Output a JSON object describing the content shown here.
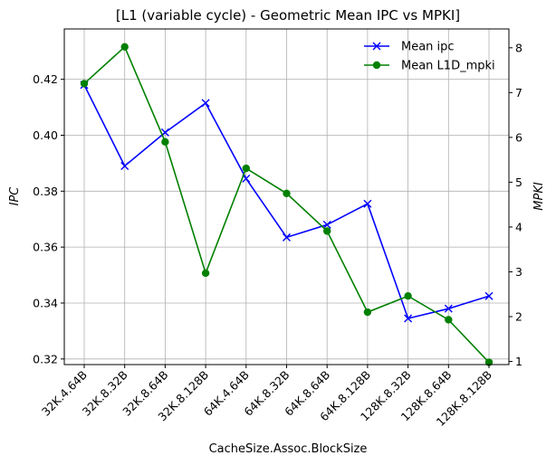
{
  "chart_data": {
    "type": "line",
    "title": "[L1 (variable cycle) - Geometric Mean IPC vs MPKI]",
    "xlabel": "CacheSize.Assoc.BlockSize",
    "ylabel_left": "IPC",
    "ylabel_right": "MPKI",
    "categories": [
      "32K.4.64B",
      "32K.8.32B",
      "32K.8.64B",
      "32K.8.128B",
      "64K.4.64B",
      "64K.8.32B",
      "64K.8.64B",
      "64K.8.128B",
      "128K.8.32B",
      "128K.8.64B",
      "128K.8.128B"
    ],
    "ylim_left": [
      0.318,
      0.438
    ],
    "ylim_right": [
      0.93,
      8.42
    ],
    "yticks_left": [
      0.32,
      0.34,
      0.36,
      0.38,
      0.4,
      0.42
    ],
    "yticks_right": [
      1,
      2,
      3,
      4,
      5,
      6,
      7,
      8
    ],
    "grid": true,
    "legend_position": "upper-right",
    "series": [
      {
        "name": "Mean ipc",
        "axis": "left",
        "color": "#0000ff",
        "marker": "x",
        "values": [
          0.418,
          0.389,
          0.401,
          0.4115,
          0.3845,
          0.3635,
          0.368,
          0.3755,
          0.3345,
          0.338,
          0.3425
        ]
      },
      {
        "name": "Mean L1D_mpki",
        "axis": "right",
        "color": "#008000",
        "marker": "o",
        "values": [
          7.2,
          8.02,
          5.9,
          2.97,
          5.31,
          4.75,
          3.91,
          2.1,
          2.46,
          1.93,
          0.98
        ]
      }
    ]
  }
}
